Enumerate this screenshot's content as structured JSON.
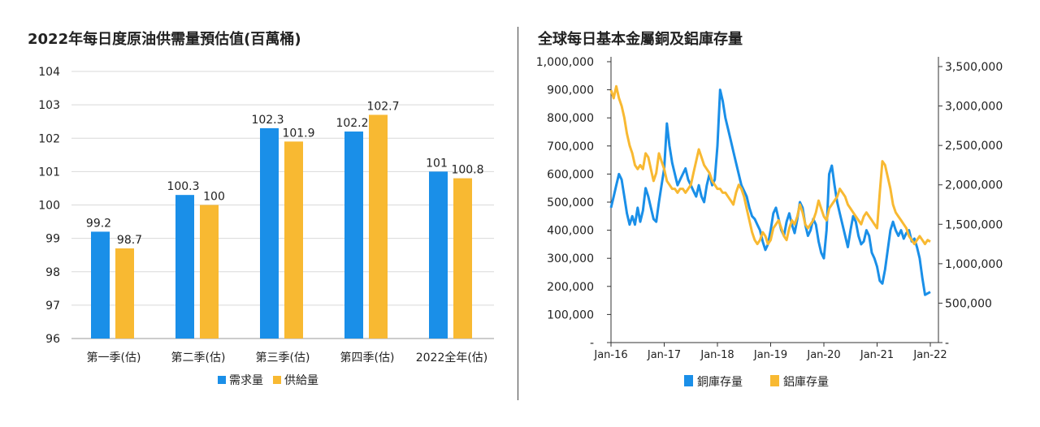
{
  "chart_data": [
    {
      "type": "bar",
      "title": "2022年每日度原油供需量預估值(百萬桶)",
      "categories": [
        "第一季(估)",
        "第二季(估)",
        "第三季(估)",
        "第四季(估)",
        "2022全年(估)"
      ],
      "series": [
        {
          "name": "需求量",
          "values": [
            99.2,
            100.3,
            102.3,
            102.2,
            101
          ],
          "labels": [
            "99.2",
            "100.3",
            "102.3",
            "102.2",
            "101"
          ],
          "color": "#1a8fe8"
        },
        {
          "name": "供給量",
          "values": [
            98.7,
            100,
            101.9,
            102.7,
            100.8
          ],
          "labels": [
            "98.7",
            "100",
            "101.9",
            "102.7",
            "100.8"
          ],
          "color": "#f8b932"
        }
      ],
      "ylim": [
        96,
        104
      ],
      "yticks": [
        "96",
        "97",
        "98",
        "99",
        "100",
        "101",
        "102",
        "103",
        "104"
      ],
      "grid": true,
      "legend": "bottom"
    },
    {
      "type": "line",
      "title": "全球每日基本金屬銅及鋁庫存量",
      "x_ticks": [
        "Jan-16",
        "Jan-17",
        "Jan-18",
        "Jan-19",
        "Jan-20",
        "Jan-21",
        "Jan-22"
      ],
      "y_left_ticks": [
        "-",
        "100,000",
        "200,000",
        "300,000",
        "400,000",
        "500,000",
        "600,000",
        "700,000",
        "800,000",
        "900,000",
        "1,000,000"
      ],
      "y_right_ticks": [
        "-",
        "500,000",
        "1,000,000",
        "1,500,000",
        "2,000,000",
        "2,500,000",
        "3,000,000",
        "3,500,000"
      ],
      "ylim_left": [
        0,
        1000000
      ],
      "ylim_right": [
        0,
        3500000
      ],
      "xlim": [
        2016.0,
        2022.0
      ],
      "legend": "bottom",
      "series": [
        {
          "name": "銅庫存量",
          "axis": "left",
          "color": "#1a8fe8",
          "x": [
            2016.0,
            2016.05,
            2016.1,
            2016.15,
            2016.2,
            2016.25,
            2016.3,
            2016.35,
            2016.4,
            2016.45,
            2016.5,
            2016.55,
            2016.6,
            2016.65,
            2016.7,
            2016.75,
            2016.8,
            2016.85,
            2016.9,
            2016.95,
            2017.0,
            2017.05,
            2017.1,
            2017.15,
            2017.2,
            2017.25,
            2017.3,
            2017.35,
            2017.4,
            2017.45,
            2017.5,
            2017.55,
            2017.6,
            2017.65,
            2017.7,
            2017.75,
            2017.8,
            2017.85,
            2017.9,
            2017.95,
            2018.0,
            2018.05,
            2018.1,
            2018.15,
            2018.2,
            2018.25,
            2018.3,
            2018.35,
            2018.4,
            2018.45,
            2018.5,
            2018.55,
            2018.6,
            2018.65,
            2018.7,
            2018.75,
            2018.8,
            2018.85,
            2018.9,
            2018.95,
            2019.0,
            2019.05,
            2019.1,
            2019.15,
            2019.2,
            2019.25,
            2019.3,
            2019.35,
            2019.4,
            2019.45,
            2019.5,
            2019.55,
            2019.6,
            2019.65,
            2019.7,
            2019.75,
            2019.8,
            2019.85,
            2019.9,
            2019.95,
            2020.0,
            2020.05,
            2020.1,
            2020.15,
            2020.2,
            2020.25,
            2020.3,
            2020.35,
            2020.4,
            2020.45,
            2020.5,
            2020.55,
            2020.6,
            2020.65,
            2020.7,
            2020.75,
            2020.8,
            2020.85,
            2020.9,
            2020.95,
            2021.0,
            2021.05,
            2021.1,
            2021.15,
            2021.2,
            2021.25,
            2021.3,
            2021.35,
            2021.4,
            2021.45,
            2021.5,
            2021.55,
            2021.6,
            2021.65,
            2021.7,
            2021.75,
            2021.8,
            2021.85,
            2021.9,
            2021.95,
            2022.0
          ],
          "y": [
            480000,
            520000,
            560000,
            600000,
            580000,
            520000,
            460000,
            420000,
            450000,
            420000,
            480000,
            430000,
            470000,
            550000,
            520000,
            480000,
            440000,
            430000,
            500000,
            560000,
            620000,
            780000,
            700000,
            640000,
            600000,
            560000,
            580000,
            600000,
            620000,
            580000,
            560000,
            540000,
            520000,
            560000,
            520000,
            500000,
            560000,
            600000,
            560000,
            580000,
            700000,
            900000,
            860000,
            800000,
            760000,
            720000,
            680000,
            640000,
            600000,
            560000,
            540000,
            520000,
            480000,
            450000,
            440000,
            420000,
            400000,
            360000,
            330000,
            350000,
            400000,
            460000,
            480000,
            440000,
            400000,
            380000,
            430000,
            460000,
            420000,
            390000,
            440000,
            500000,
            480000,
            420000,
            380000,
            400000,
            440000,
            420000,
            360000,
            320000,
            300000,
            400000,
            600000,
            630000,
            560000,
            500000,
            460000,
            420000,
            380000,
            340000,
            400000,
            450000,
            430000,
            380000,
            350000,
            360000,
            400000,
            380000,
            320000,
            300000,
            270000,
            220000,
            210000,
            260000,
            330000,
            400000,
            430000,
            400000,
            380000,
            400000,
            370000,
            390000,
            400000,
            360000,
            370000,
            340000,
            300000,
            230000,
            170000,
            175000,
            180000
          ]
        },
        {
          "name": "鋁庫存量",
          "axis": "right",
          "color": "#f8b932",
          "x": [
            2016.0,
            2016.05,
            2016.1,
            2016.15,
            2016.2,
            2016.25,
            2016.3,
            2016.35,
            2016.4,
            2016.45,
            2016.5,
            2016.55,
            2016.6,
            2016.65,
            2016.7,
            2016.75,
            2016.8,
            2016.85,
            2016.9,
            2016.95,
            2017.0,
            2017.05,
            2017.1,
            2017.15,
            2017.2,
            2017.25,
            2017.3,
            2017.35,
            2017.4,
            2017.45,
            2017.5,
            2017.55,
            2017.6,
            2017.65,
            2017.7,
            2017.75,
            2017.8,
            2017.85,
            2017.9,
            2017.95,
            2018.0,
            2018.05,
            2018.1,
            2018.15,
            2018.2,
            2018.25,
            2018.3,
            2018.35,
            2018.4,
            2018.45,
            2018.5,
            2018.55,
            2018.6,
            2018.65,
            2018.7,
            2018.75,
            2018.8,
            2018.85,
            2018.9,
            2018.95,
            2019.0,
            2019.05,
            2019.1,
            2019.15,
            2019.2,
            2019.25,
            2019.3,
            2019.35,
            2019.4,
            2019.45,
            2019.5,
            2019.55,
            2019.6,
            2019.65,
            2019.7,
            2019.75,
            2019.8,
            2019.85,
            2019.9,
            2019.95,
            2020.0,
            2020.05,
            2020.1,
            2020.15,
            2020.2,
            2020.25,
            2020.3,
            2020.35,
            2020.4,
            2020.45,
            2020.5,
            2020.55,
            2020.6,
            2020.65,
            2020.7,
            2020.75,
            2020.8,
            2020.85,
            2020.9,
            2020.95,
            2021.0,
            2021.05,
            2021.1,
            2021.15,
            2021.2,
            2021.25,
            2021.3,
            2021.35,
            2021.4,
            2021.45,
            2021.5,
            2021.55,
            2021.6,
            2021.65,
            2021.7,
            2021.75,
            2021.8,
            2021.85,
            2021.9,
            2021.95,
            2022.0
          ],
          "y": [
            3200000,
            3100000,
            3250000,
            3100000,
            3000000,
            2850000,
            2650000,
            2500000,
            2400000,
            2250000,
            2200000,
            2250000,
            2200000,
            2400000,
            2350000,
            2200000,
            2050000,
            2150000,
            2400000,
            2300000,
            2200000,
            2050000,
            2000000,
            1950000,
            1950000,
            1900000,
            1950000,
            1950000,
            1900000,
            1950000,
            2000000,
            2150000,
            2300000,
            2450000,
            2350000,
            2250000,
            2200000,
            2150000,
            2050000,
            2000000,
            1950000,
            1950000,
            1900000,
            1900000,
            1850000,
            1800000,
            1750000,
            1900000,
            2000000,
            1950000,
            1850000,
            1700000,
            1550000,
            1400000,
            1300000,
            1250000,
            1300000,
            1400000,
            1350000,
            1250000,
            1300000,
            1450000,
            1500000,
            1550000,
            1450000,
            1350000,
            1300000,
            1450000,
            1550000,
            1500000,
            1600000,
            1750000,
            1650000,
            1500000,
            1450000,
            1500000,
            1550000,
            1650000,
            1800000,
            1700000,
            1600000,
            1550000,
            1700000,
            1750000,
            1800000,
            1850000,
            1950000,
            1900000,
            1850000,
            1750000,
            1700000,
            1650000,
            1600000,
            1550000,
            1500000,
            1600000,
            1650000,
            1600000,
            1550000,
            1500000,
            1450000,
            1900000,
            2300000,
            2250000,
            2100000,
            1950000,
            1750000,
            1650000,
            1600000,
            1550000,
            1500000,
            1450000,
            1350000,
            1300000,
            1250000,
            1300000,
            1350000,
            1300000,
            1250000,
            1300000,
            1280000
          ]
        }
      ]
    }
  ]
}
